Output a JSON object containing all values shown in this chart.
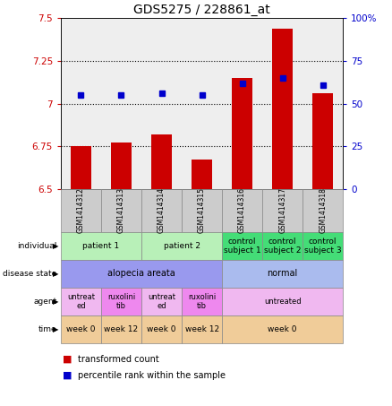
{
  "title": "GDS5275 / 228861_at",
  "samples": [
    "GSM1414312",
    "GSM1414313",
    "GSM1414314",
    "GSM1414315",
    "GSM1414316",
    "GSM1414317",
    "GSM1414318"
  ],
  "red_values": [
    6.75,
    6.77,
    6.82,
    6.67,
    7.15,
    7.44,
    7.06
  ],
  "blue_values": [
    55,
    55,
    56,
    55,
    62,
    65,
    61
  ],
  "ylim_left": [
    6.5,
    7.5
  ],
  "ylim_right": [
    0,
    100
  ],
  "yticks_left": [
    6.5,
    6.75,
    7.0,
    7.25,
    7.5
  ],
  "yticks_right": [
    0,
    25,
    50,
    75,
    100
  ],
  "ytick_labels_left": [
    "6.5",
    "6.75",
    "7",
    "7.25",
    "7.5"
  ],
  "ytick_labels_right": [
    "0",
    "25",
    "50",
    "75",
    "100%"
  ],
  "hlines": [
    6.75,
    7.0,
    7.25
  ],
  "row_labels": [
    "individual",
    "disease state",
    "agent",
    "time"
  ],
  "individual_data": [
    {
      "label": "patient 1",
      "cols": [
        0,
        1
      ],
      "color": "#b8f0b8"
    },
    {
      "label": "patient 2",
      "cols": [
        2,
        3
      ],
      "color": "#b8f0b8"
    },
    {
      "label": "control\nsubject 1",
      "cols": [
        4
      ],
      "color": "#44dd77"
    },
    {
      "label": "control\nsubject 2",
      "cols": [
        5
      ],
      "color": "#44dd77"
    },
    {
      "label": "control\nsubject 3",
      "cols": [
        6
      ],
      "color": "#44dd77"
    }
  ],
  "disease_data": [
    {
      "label": "alopecia areata",
      "cols": [
        0,
        1,
        2,
        3
      ],
      "color": "#9999ee"
    },
    {
      "label": "normal",
      "cols": [
        4,
        5,
        6
      ],
      "color": "#aabbee"
    }
  ],
  "agent_data": [
    {
      "label": "untreat\ned",
      "cols": [
        0
      ],
      "color": "#f0b8f0"
    },
    {
      "label": "ruxolini\ntib",
      "cols": [
        1
      ],
      "color": "#ee88ee"
    },
    {
      "label": "untreat\ned",
      "cols": [
        2
      ],
      "color": "#f0b8f0"
    },
    {
      "label": "ruxolini\ntib",
      "cols": [
        3
      ],
      "color": "#ee88ee"
    },
    {
      "label": "untreated",
      "cols": [
        4,
        5,
        6
      ],
      "color": "#f0b8f0"
    }
  ],
  "time_data": [
    {
      "label": "week 0",
      "cols": [
        0
      ],
      "color": "#f0cc99"
    },
    {
      "label": "week 12",
      "cols": [
        1
      ],
      "color": "#f0cc99"
    },
    {
      "label": "week 0",
      "cols": [
        2
      ],
      "color": "#f0cc99"
    },
    {
      "label": "week 12",
      "cols": [
        3
      ],
      "color": "#f0cc99"
    },
    {
      "label": "week 0",
      "cols": [
        4,
        5,
        6
      ],
      "color": "#f0cc99"
    }
  ],
  "bar_color": "#cc0000",
  "dot_color": "#0000cc",
  "plot_bg": "#eeeeee",
  "legend_red": "transformed count",
  "legend_blue": "percentile rank within the sample"
}
